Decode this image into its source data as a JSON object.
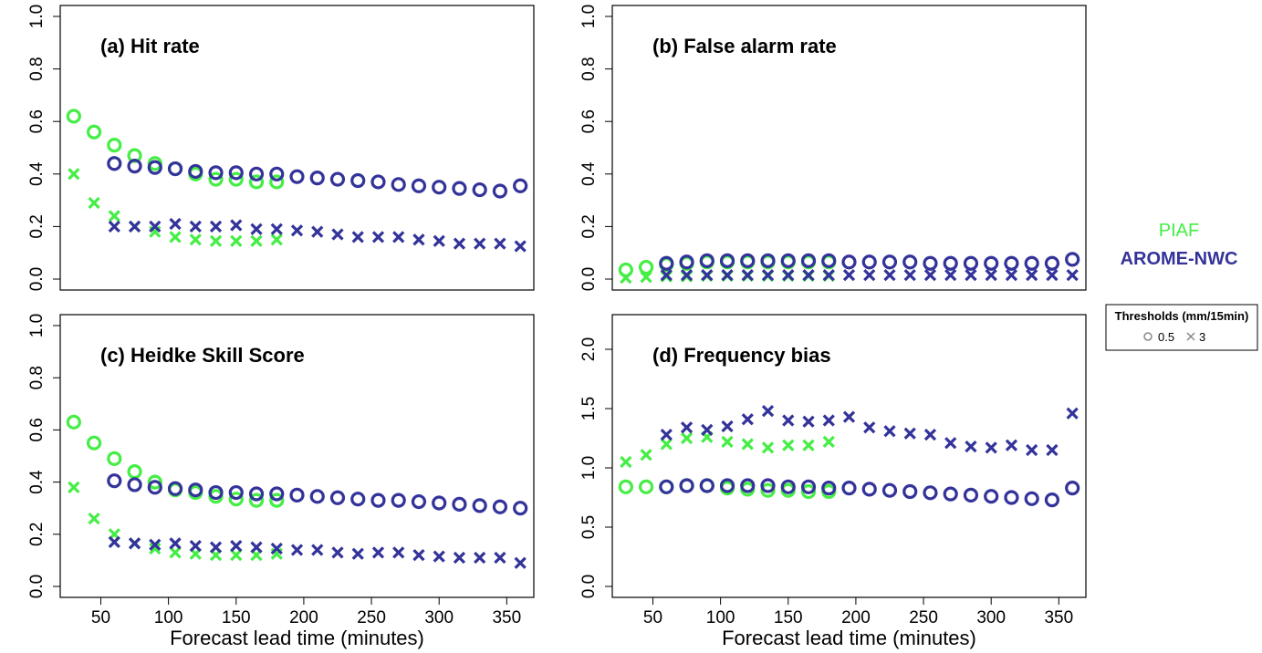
{
  "colors": {
    "piaf": "#44ee44",
    "arome": "#33339a"
  },
  "legend": {
    "piaf": "PIAF",
    "arome": "AROME-NWC",
    "thresholds_title": "Thresholds (mm/15min)",
    "thr_low": "0.5",
    "thr_high": "3"
  },
  "chart_data": [
    {
      "type": "scatter",
      "title": "(a) Hit rate",
      "xlabel": "",
      "ylabel": "",
      "xlim": [
        20,
        370
      ],
      "ylim": [
        0,
        1
      ],
      "yticks": [
        0.0,
        0.2,
        0.4,
        0.6,
        0.8,
        1.0
      ],
      "xticks": [],
      "series": [
        {
          "name": "PIAF",
          "threshold": "0.5",
          "marker": "circle",
          "x": [
            30,
            45,
            60,
            75,
            90,
            105,
            120,
            135,
            150,
            165,
            180
          ],
          "y": [
            0.62,
            0.56,
            0.51,
            0.47,
            0.44,
            0.42,
            0.4,
            0.38,
            0.38,
            0.37,
            0.37
          ]
        },
        {
          "name": "PIAF",
          "threshold": "3",
          "marker": "x",
          "x": [
            30,
            45,
            60,
            75,
            90,
            105,
            120,
            135,
            150,
            165,
            180
          ],
          "y": [
            0.4,
            0.29,
            0.24,
            0.2,
            0.18,
            0.16,
            0.15,
            0.145,
            0.145,
            0.145,
            0.15
          ]
        },
        {
          "name": "AROME-NWC",
          "threshold": "0.5",
          "marker": "circle",
          "x": [
            60,
            75,
            90,
            105,
            120,
            135,
            150,
            165,
            180,
            195,
            210,
            225,
            240,
            255,
            270,
            285,
            300,
            315,
            330,
            345,
            360
          ],
          "y": [
            0.44,
            0.43,
            0.425,
            0.42,
            0.41,
            0.405,
            0.405,
            0.4,
            0.4,
            0.39,
            0.385,
            0.38,
            0.375,
            0.37,
            0.36,
            0.355,
            0.35,
            0.345,
            0.34,
            0.335,
            0.355
          ]
        },
        {
          "name": "AROME-NWC",
          "threshold": "3",
          "marker": "x",
          "x": [
            60,
            75,
            90,
            105,
            120,
            135,
            150,
            165,
            180,
            195,
            210,
            225,
            240,
            255,
            270,
            285,
            300,
            315,
            330,
            345,
            360
          ],
          "y": [
            0.2,
            0.2,
            0.2,
            0.21,
            0.2,
            0.2,
            0.205,
            0.19,
            0.19,
            0.185,
            0.18,
            0.17,
            0.16,
            0.16,
            0.16,
            0.15,
            0.145,
            0.135,
            0.135,
            0.135,
            0.125
          ]
        }
      ]
    },
    {
      "type": "scatter",
      "title": "(b) False alarm rate",
      "xlabel": "",
      "ylabel": "",
      "xlim": [
        20,
        370
      ],
      "ylim": [
        0,
        1
      ],
      "yticks": [
        0.0,
        0.2,
        0.4,
        0.6,
        0.8,
        1.0
      ],
      "xticks": [],
      "series": [
        {
          "name": "PIAF",
          "threshold": "0.5",
          "marker": "circle",
          "x": [
            30,
            45,
            60,
            75,
            90,
            105,
            120,
            135,
            150,
            165,
            180
          ],
          "y": [
            0.035,
            0.045,
            0.055,
            0.06,
            0.065,
            0.065,
            0.065,
            0.065,
            0.065,
            0.065,
            0.065
          ]
        },
        {
          "name": "PIAF",
          "threshold": "3",
          "marker": "x",
          "x": [
            30,
            45,
            60,
            75,
            90,
            105,
            120,
            135,
            150,
            165,
            180
          ],
          "y": [
            0.005,
            0.008,
            0.01,
            0.01,
            0.012,
            0.012,
            0.012,
            0.012,
            0.012,
            0.012,
            0.012
          ]
        },
        {
          "name": "AROME-NWC",
          "threshold": "0.5",
          "marker": "circle",
          "x": [
            60,
            75,
            90,
            105,
            120,
            135,
            150,
            165,
            180,
            195,
            210,
            225,
            240,
            255,
            270,
            285,
            300,
            315,
            330,
            345,
            360
          ],
          "y": [
            0.06,
            0.065,
            0.07,
            0.07,
            0.07,
            0.07,
            0.07,
            0.07,
            0.07,
            0.065,
            0.065,
            0.065,
            0.065,
            0.06,
            0.06,
            0.06,
            0.06,
            0.06,
            0.06,
            0.06,
            0.075
          ]
        },
        {
          "name": "AROME-NWC",
          "threshold": "3",
          "marker": "x",
          "x": [
            60,
            75,
            90,
            105,
            120,
            135,
            150,
            165,
            180,
            195,
            210,
            225,
            240,
            255,
            270,
            285,
            300,
            315,
            330,
            345,
            360
          ],
          "y": [
            0.015,
            0.015,
            0.015,
            0.015,
            0.015,
            0.015,
            0.015,
            0.015,
            0.015,
            0.015,
            0.015,
            0.015,
            0.015,
            0.015,
            0.015,
            0.015,
            0.015,
            0.015,
            0.015,
            0.015,
            0.015
          ]
        }
      ]
    },
    {
      "type": "scatter",
      "title": "(c) Heidke Skill Score",
      "xlabel": "Forecast lead time (minutes)",
      "ylabel": "",
      "xlim": [
        20,
        370
      ],
      "ylim": [
        0,
        1
      ],
      "yticks": [
        0.0,
        0.2,
        0.4,
        0.6,
        0.8,
        1.0
      ],
      "xticks": [
        50,
        100,
        150,
        200,
        250,
        300,
        350
      ],
      "series": [
        {
          "name": "PIAF",
          "threshold": "0.5",
          "marker": "circle",
          "x": [
            30,
            45,
            60,
            75,
            90,
            105,
            120,
            135,
            150,
            165,
            180
          ],
          "y": [
            0.63,
            0.55,
            0.49,
            0.44,
            0.4,
            0.37,
            0.36,
            0.345,
            0.335,
            0.33,
            0.33
          ]
        },
        {
          "name": "PIAF",
          "threshold": "3",
          "marker": "x",
          "x": [
            30,
            45,
            60,
            75,
            90,
            105,
            120,
            135,
            150,
            165,
            180
          ],
          "y": [
            0.38,
            0.26,
            0.2,
            0.165,
            0.145,
            0.13,
            0.125,
            0.12,
            0.12,
            0.12,
            0.125
          ]
        },
        {
          "name": "AROME-NWC",
          "threshold": "0.5",
          "marker": "circle",
          "x": [
            60,
            75,
            90,
            105,
            120,
            135,
            150,
            165,
            180,
            195,
            210,
            225,
            240,
            255,
            270,
            285,
            300,
            315,
            330,
            345,
            360
          ],
          "y": [
            0.405,
            0.39,
            0.38,
            0.375,
            0.37,
            0.36,
            0.36,
            0.355,
            0.355,
            0.35,
            0.345,
            0.34,
            0.335,
            0.33,
            0.33,
            0.325,
            0.32,
            0.315,
            0.31,
            0.305,
            0.3
          ]
        },
        {
          "name": "AROME-NWC",
          "threshold": "3",
          "marker": "x",
          "x": [
            60,
            75,
            90,
            105,
            120,
            135,
            150,
            165,
            180,
            195,
            210,
            225,
            240,
            255,
            270,
            285,
            300,
            315,
            330,
            345,
            360
          ],
          "y": [
            0.17,
            0.165,
            0.16,
            0.165,
            0.155,
            0.15,
            0.155,
            0.15,
            0.145,
            0.14,
            0.14,
            0.13,
            0.125,
            0.13,
            0.13,
            0.12,
            0.115,
            0.11,
            0.11,
            0.11,
            0.09
          ]
        }
      ]
    },
    {
      "type": "scatter",
      "title": "(d) Frequency bias",
      "xlabel": "Forecast lead time (minutes)",
      "ylabel": "",
      "xlim": [
        20,
        370
      ],
      "ylim": [
        0,
        2.2
      ],
      "yticks": [
        0.0,
        0.5,
        1.0,
        1.5,
        2.0
      ],
      "xticks": [
        50,
        100,
        150,
        200,
        250,
        300,
        350
      ],
      "series": [
        {
          "name": "PIAF",
          "threshold": "0.5",
          "marker": "circle",
          "x": [
            30,
            45,
            60,
            75,
            90,
            105,
            120,
            135,
            150,
            165,
            180
          ],
          "y": [
            0.84,
            0.84,
            0.84,
            0.85,
            0.85,
            0.83,
            0.82,
            0.81,
            0.81,
            0.8,
            0.8
          ]
        },
        {
          "name": "PIAF",
          "threshold": "3",
          "marker": "x",
          "x": [
            30,
            45,
            60,
            75,
            90,
            105,
            120,
            135,
            150,
            165,
            180
          ],
          "y": [
            1.05,
            1.11,
            1.2,
            1.25,
            1.26,
            1.22,
            1.2,
            1.17,
            1.19,
            1.19,
            1.22
          ]
        },
        {
          "name": "AROME-NWC",
          "threshold": "0.5",
          "marker": "circle",
          "x": [
            60,
            75,
            90,
            105,
            120,
            135,
            150,
            165,
            180,
            195,
            210,
            225,
            240,
            255,
            270,
            285,
            300,
            315,
            330,
            345,
            360
          ],
          "y": [
            0.84,
            0.85,
            0.85,
            0.85,
            0.85,
            0.85,
            0.84,
            0.84,
            0.83,
            0.83,
            0.82,
            0.81,
            0.8,
            0.79,
            0.78,
            0.77,
            0.76,
            0.75,
            0.74,
            0.73,
            0.83
          ]
        },
        {
          "name": "AROME-NWC",
          "threshold": "3",
          "marker": "x",
          "x": [
            60,
            75,
            90,
            105,
            120,
            135,
            150,
            165,
            180,
            195,
            210,
            225,
            240,
            255,
            270,
            285,
            300,
            315,
            330,
            345,
            360
          ],
          "y": [
            1.28,
            1.34,
            1.32,
            1.35,
            1.41,
            1.48,
            1.4,
            1.39,
            1.4,
            1.43,
            1.34,
            1.31,
            1.29,
            1.28,
            1.21,
            1.18,
            1.17,
            1.19,
            1.15,
            1.15,
            1.46
          ]
        }
      ]
    }
  ]
}
